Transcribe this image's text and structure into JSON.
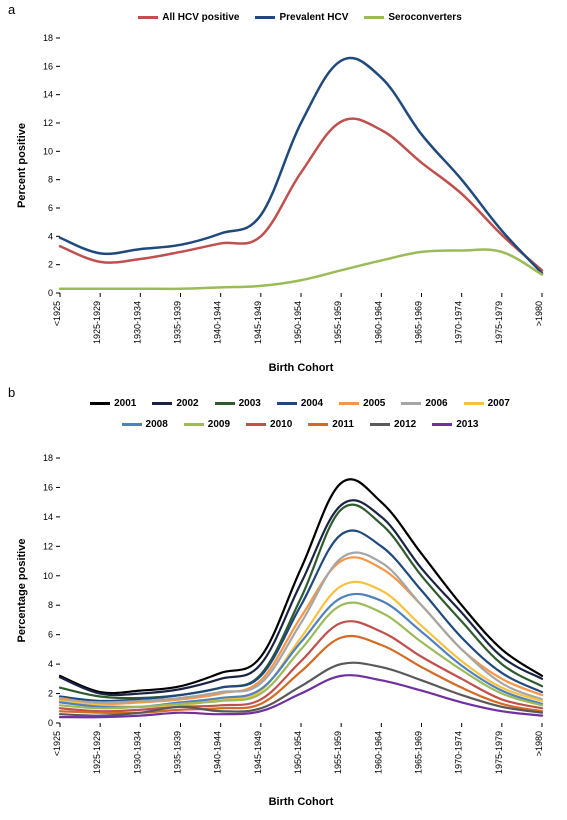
{
  "panelA": {
    "label": "a",
    "xlabel": "Birth Cohort",
    "ylabel": "Percent positive",
    "ylim": [
      0,
      18
    ],
    "ytick_step": 2,
    "line_width": 2.5,
    "background": "#ffffff",
    "categories": [
      "<1925",
      "1925-1929",
      "1930-1934",
      "1935-1939",
      "1940-1944",
      "1945-1949",
      "1950-1954",
      "1955-1959",
      "1960-1964",
      "1965-1969",
      "1970-1974",
      "1975-1979",
      ">1980"
    ],
    "series": [
      {
        "name": "All HCV positive",
        "color": "#c0504d",
        "values": [
          3.3,
          2.2,
          2.4,
          2.9,
          3.5,
          4.0,
          8.5,
          12.1,
          11.5,
          9.2,
          7.0,
          4.1,
          1.6
        ]
      },
      {
        "name": "Prevalent HCV",
        "color": "#1f497d",
        "values": [
          3.9,
          2.8,
          3.1,
          3.4,
          4.2,
          5.5,
          12.0,
          16.4,
          15.2,
          11.2,
          8.0,
          4.4,
          1.4
        ]
      },
      {
        "name": "Seroconverters",
        "color": "#9bbb59",
        "values": [
          0.3,
          0.3,
          0.3,
          0.3,
          0.4,
          0.5,
          0.9,
          1.6,
          2.3,
          2.9,
          3.0,
          2.9,
          1.3
        ]
      }
    ]
  },
  "panelB": {
    "label": "b",
    "xlabel": "Birth Cohort",
    "ylabel": "Percentage positive",
    "ylim": [
      0,
      18
    ],
    "ytick_step": 2,
    "line_width": 2.2,
    "background": "#ffffff",
    "categories": [
      "<1925",
      "1925-1929",
      "1930-1934",
      "1935-1939",
      "1940-1944",
      "1945-1949",
      "1950-1954",
      "1955-1959",
      "1960-1964",
      "1965-1969",
      "1970-1974",
      "1975-1979",
      ">1980"
    ],
    "series": [
      {
        "name": "2001",
        "color": "#000000",
        "values": [
          3.2,
          2.1,
          2.2,
          2.5,
          3.4,
          4.5,
          10.5,
          16.3,
          15.0,
          11.5,
          8.0,
          5.0,
          3.2
        ]
      },
      {
        "name": "2002",
        "color": "#1a2344",
        "values": [
          3.1,
          2.0,
          2.0,
          2.3,
          3.0,
          4.0,
          9.5,
          14.8,
          14.0,
          10.5,
          7.5,
          4.5,
          3.0
        ]
      },
      {
        "name": "2003",
        "color": "#2e5b2e",
        "values": [
          2.4,
          1.8,
          1.7,
          1.9,
          2.4,
          3.3,
          8.5,
          14.5,
          13.5,
          10.0,
          6.9,
          4.0,
          2.5
        ]
      },
      {
        "name": "2004",
        "color": "#1f497d",
        "values": [
          1.8,
          1.5,
          1.6,
          1.9,
          2.4,
          3.2,
          8.0,
          12.8,
          12.0,
          9.0,
          5.8,
          3.4,
          2.1
        ]
      },
      {
        "name": "2005",
        "color": "#f79646",
        "values": [
          1.7,
          1.3,
          1.4,
          1.6,
          2.0,
          2.9,
          7.2,
          11.0,
          10.5,
          8.0,
          5.0,
          3.0,
          1.9
        ]
      },
      {
        "name": "2006",
        "color": "#a6a6a6",
        "values": [
          1.6,
          1.4,
          1.5,
          1.7,
          2.1,
          2.7,
          6.8,
          11.2,
          10.9,
          8.0,
          5.0,
          2.7,
          1.6
        ]
      },
      {
        "name": "2007",
        "color": "#f7c242",
        "values": [
          1.5,
          1.2,
          1.1,
          1.2,
          1.6,
          2.2,
          5.8,
          9.3,
          9.0,
          6.6,
          4.2,
          2.4,
          1.5
        ]
      },
      {
        "name": "2008",
        "color": "#4f81bd",
        "values": [
          1.4,
          1.1,
          1.1,
          1.4,
          1.7,
          2.3,
          5.5,
          8.5,
          8.3,
          6.2,
          3.9,
          2.2,
          1.3
        ]
      },
      {
        "name": "2009",
        "color": "#9bbb59",
        "values": [
          1.2,
          1.0,
          1.1,
          1.3,
          1.5,
          2.0,
          5.0,
          8.0,
          7.5,
          5.5,
          3.6,
          2.0,
          1.2
        ]
      },
      {
        "name": "2010",
        "color": "#c0504d",
        "values": [
          1.0,
          0.8,
          0.9,
          1.1,
          1.2,
          1.6,
          4.2,
          6.8,
          6.2,
          4.5,
          3.0,
          1.6,
          1.0
        ]
      },
      {
        "name": "2011",
        "color": "#d26b24",
        "values": [
          0.8,
          0.7,
          0.7,
          0.9,
          1.0,
          1.3,
          3.5,
          5.8,
          5.3,
          3.8,
          2.4,
          1.3,
          0.8
        ]
      },
      {
        "name": "2012",
        "color": "#595959",
        "values": [
          0.6,
          0.5,
          0.7,
          1.1,
          0.8,
          1.0,
          2.5,
          4.0,
          3.8,
          2.9,
          1.9,
          1.1,
          0.7
        ]
      },
      {
        "name": "2013",
        "color": "#7030a0",
        "values": [
          0.4,
          0.4,
          0.5,
          0.7,
          0.6,
          0.8,
          2.0,
          3.2,
          2.9,
          2.2,
          1.4,
          0.8,
          0.5
        ]
      }
    ]
  }
}
